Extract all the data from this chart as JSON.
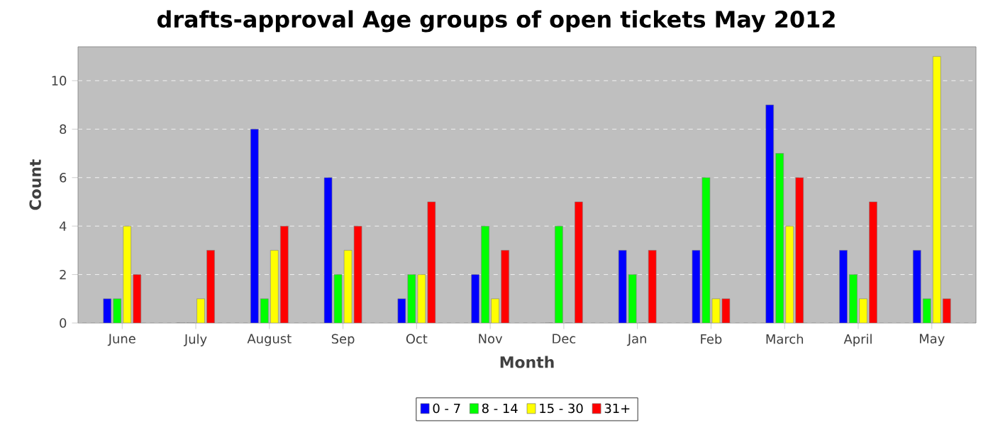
{
  "chart_data": {
    "type": "bar",
    "title": "drafts-approval Age groups of open tickets May 2012",
    "xlabel": "Month",
    "ylabel": "Count",
    "categories": [
      "June",
      "July",
      "August",
      "Sep",
      "Oct",
      "Nov",
      "Dec",
      "Jan",
      "Feb",
      "March",
      "April",
      "May"
    ],
    "series": [
      {
        "name": "0 - 7",
        "color": "#0000ff",
        "values": [
          1,
          0,
          8,
          6,
          1,
          2,
          0,
          3,
          3,
          9,
          3,
          3
        ]
      },
      {
        "name": "8 - 14",
        "color": "#00ff00",
        "values": [
          1,
          0,
          1,
          2,
          2,
          4,
          4,
          2,
          6,
          7,
          2,
          1
        ]
      },
      {
        "name": "15 - 30",
        "color": "#ffff00",
        "values": [
          4,
          1,
          3,
          3,
          2,
          1,
          0,
          0,
          1,
          4,
          1,
          11
        ]
      },
      {
        "name": "31+",
        "color": "#ff0000",
        "values": [
          2,
          3,
          4,
          4,
          5,
          3,
          5,
          3,
          1,
          6,
          5,
          1
        ]
      }
    ],
    "ylim": [
      0,
      11.4
    ],
    "yticks": [
      0,
      2,
      4,
      6,
      8,
      10
    ],
    "grid": "y",
    "legend": "bottom"
  }
}
